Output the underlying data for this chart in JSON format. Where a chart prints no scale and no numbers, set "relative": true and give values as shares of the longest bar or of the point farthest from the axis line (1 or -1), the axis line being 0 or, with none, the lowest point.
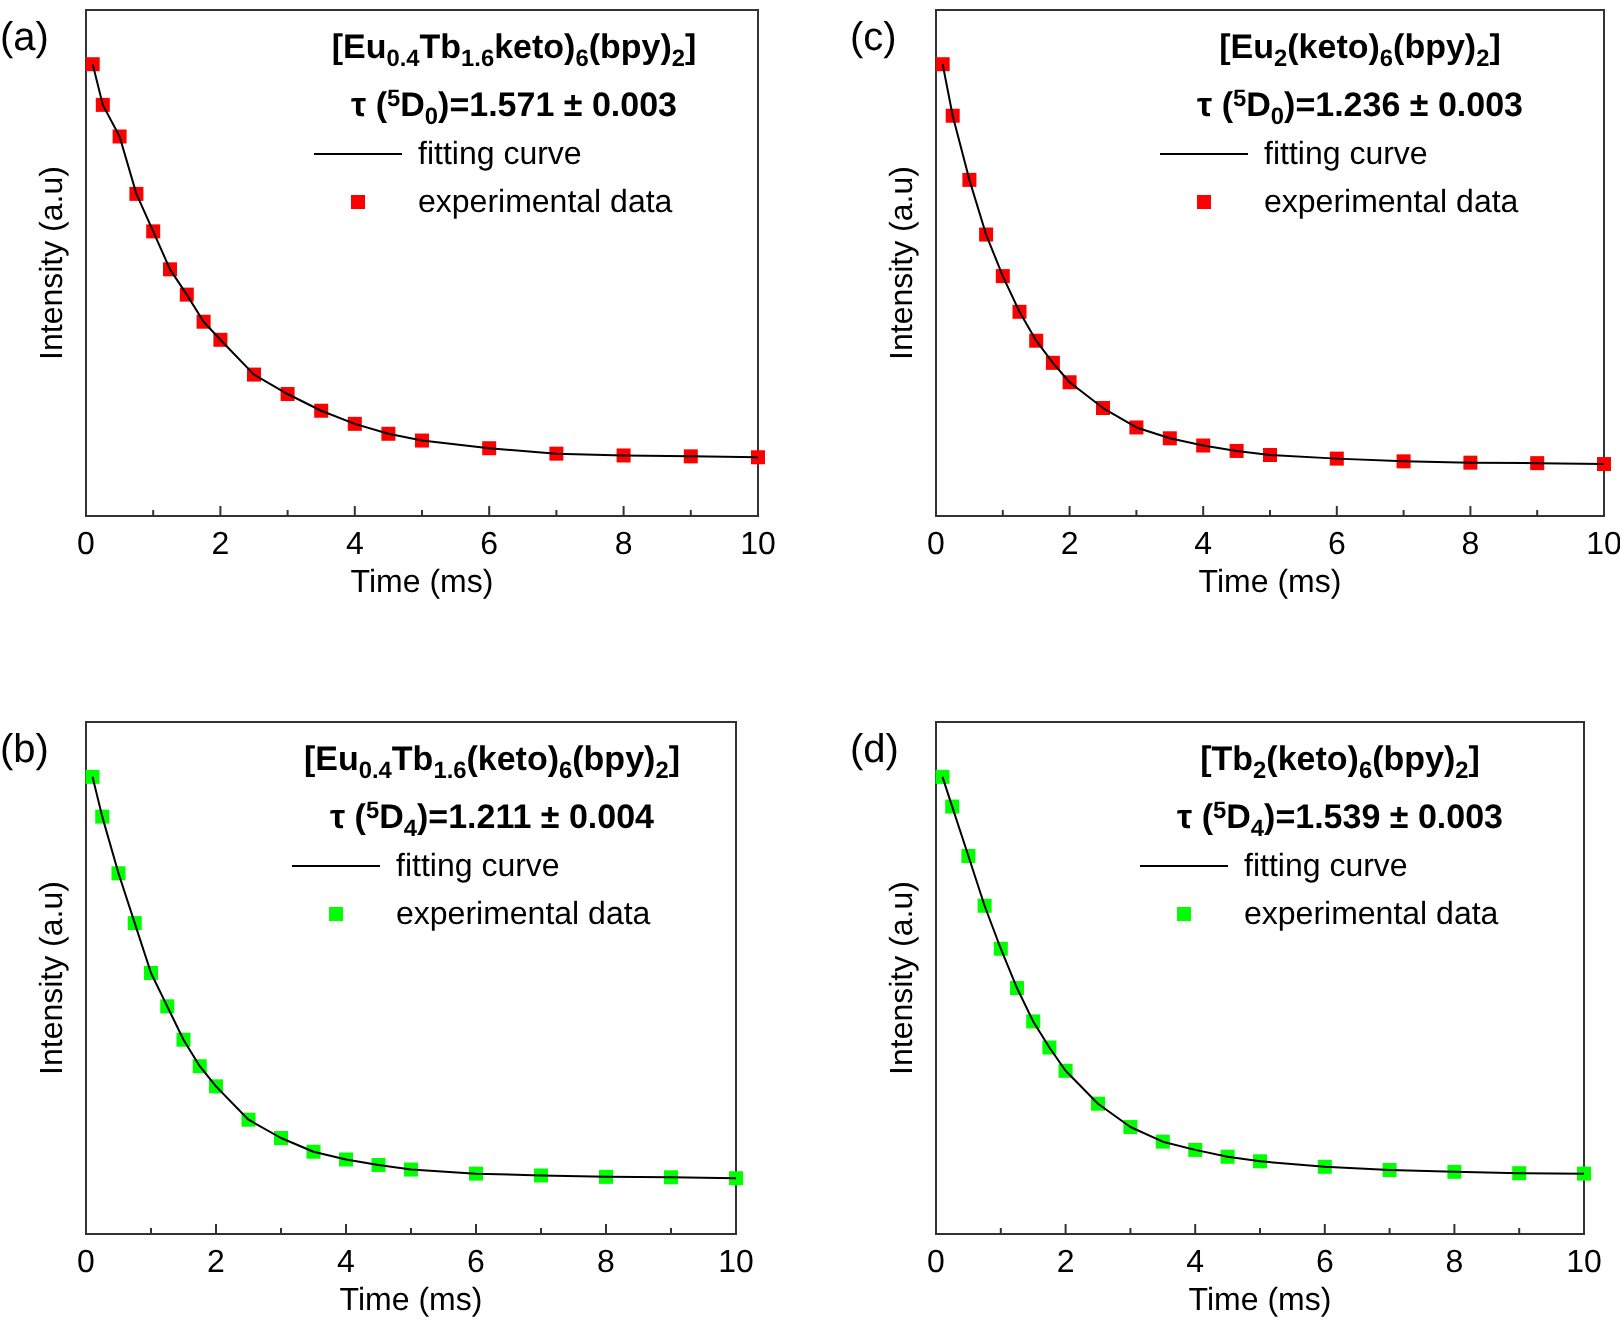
{
  "chart_data": [
    {
      "type": "line",
      "title": "[Eu$_{0.4}$Tb$_{1.6}$keto)$_{6}$(bpy)$_{2}$]",
      "subtitle": "τ ($^{5}$D$_{0}$)=1.571 ± 0.003",
      "annotations": [
        "(a)"
      ],
      "xlabel": "Time (ms)",
      "ylabel": "Intensity (a.u)",
      "relative": true,
      "legend": "top right",
      "tick_labels": "x",
      "xlim": [
        0,
        10
      ],
      "xticks": [
        0,
        {
          "value": 1,
          "label": null
        },
        2,
        {
          "value": 3,
          "label": null
        },
        4,
        {
          "value": 5,
          "label": null
        },
        6,
        {
          "value": 7,
          "label": null
        },
        8,
        {
          "value": 9,
          "label": null
        },
        10
      ],
      "x": [
        0.1,
        0.25,
        0.5,
        0.75,
        1,
        1.25,
        1.5,
        1.75,
        2,
        2.5,
        3,
        3.5,
        4,
        4.5,
        5,
        6,
        7,
        8,
        9,
        10
      ],
      "series": [
        {
          "name": "fitting curve",
          "type": "line",
          "color": "#000000",
          "marker": "none",
          "values": [
            1.0,
            0.91,
            0.84,
            0.713,
            0.63,
            0.546,
            0.49,
            0.43,
            0.39,
            0.313,
            0.27,
            0.233,
            0.204,
            0.182,
            0.167,
            0.15,
            0.138,
            0.134,
            0.132,
            0.13
          ]
        },
        {
          "name": "experimental data",
          "type": "scatter",
          "color": "#ff0000",
          "marker": "square",
          "values": [
            1.0,
            0.91,
            0.84,
            0.713,
            0.63,
            0.546,
            0.49,
            0.43,
            0.39,
            0.313,
            0.27,
            0.233,
            0.204,
            0.182,
            0.167,
            0.15,
            0.138,
            0.134,
            0.132,
            0.13
          ]
        }
      ]
    },
    {
      "type": "line",
      "title": "[Eu$_{2}$(keto)$_{6}$(bpy)$_{2}$]",
      "subtitle": "τ ($^{5}$D$_{0}$)=1.236 ± 0.003",
      "annotations": [
        "(c)"
      ],
      "xlabel": "Time (ms)",
      "ylabel": "Intensity (a.u)",
      "relative": true,
      "legend": "top right",
      "tick_labels": "x",
      "xlim": [
        0,
        10
      ],
      "xticks": [
        0,
        {
          "value": 1,
          "label": null
        },
        2,
        {
          "value": 3,
          "label": null
        },
        4,
        {
          "value": 5,
          "label": null
        },
        6,
        {
          "value": 7,
          "label": null
        },
        8,
        {
          "value": 9,
          "label": null
        },
        10
      ],
      "x": [
        0.1,
        0.25,
        0.5,
        0.75,
        1,
        1.25,
        1.5,
        1.75,
        2,
        2.5,
        3,
        3.5,
        4,
        4.5,
        5,
        6,
        7,
        8,
        9,
        10
      ],
      "series": [
        {
          "name": "fitting curve",
          "type": "line",
          "color": "#000000",
          "marker": "none",
          "values": [
            1.0,
            0.886,
            0.744,
            0.623,
            0.531,
            0.452,
            0.388,
            0.339,
            0.296,
            0.239,
            0.196,
            0.172,
            0.156,
            0.144,
            0.135,
            0.127,
            0.121,
            0.118,
            0.117,
            0.115
          ]
        },
        {
          "name": "experimental data",
          "type": "scatter",
          "color": "#ff0000",
          "marker": "square",
          "values": [
            1.0,
            0.886,
            0.744,
            0.623,
            0.531,
            0.452,
            0.388,
            0.339,
            0.296,
            0.239,
            0.196,
            0.172,
            0.156,
            0.144,
            0.135,
            0.127,
            0.121,
            0.118,
            0.117,
            0.115
          ]
        }
      ]
    },
    {
      "type": "line",
      "title": "[Eu$_{0.4}$Tb$_{1.6}$(keto)$_{6}$(bpy)$_{2}$]",
      "subtitle": "τ ($^{5}$D$_{4}$)=1.211 ± 0.004",
      "annotations": [
        "(b)"
      ],
      "xlabel": "Time (ms)",
      "ylabel": "Intensity (a.u)",
      "relative": true,
      "legend": "top right",
      "tick_labels": "x",
      "xlim": [
        0,
        10
      ],
      "xticks": [
        0,
        {
          "value": 1,
          "label": null
        },
        2,
        {
          "value": 3,
          "label": null
        },
        4,
        {
          "value": 5,
          "label": null
        },
        6,
        {
          "value": 7,
          "label": null
        },
        8,
        {
          "value": 9,
          "label": null
        },
        10
      ],
      "x": [
        0.1,
        0.25,
        0.5,
        0.75,
        1,
        1.25,
        1.5,
        1.75,
        2,
        2.5,
        3,
        3.5,
        4,
        4.5,
        5,
        6,
        7,
        8,
        9,
        10
      ],
      "series": [
        {
          "name": "fitting curve",
          "type": "line",
          "color": "#000000",
          "marker": "none",
          "values": [
            1.0,
            0.913,
            0.789,
            0.68,
            0.571,
            0.498,
            0.425,
            0.367,
            0.323,
            0.25,
            0.21,
            0.18,
            0.163,
            0.151,
            0.141,
            0.132,
            0.128,
            0.125,
            0.124,
            0.122
          ]
        },
        {
          "name": "experimental data",
          "type": "scatter",
          "color": "#00ff00",
          "marker": "square",
          "values": [
            1.0,
            0.913,
            0.789,
            0.68,
            0.571,
            0.498,
            0.425,
            0.367,
            0.323,
            0.25,
            0.21,
            0.18,
            0.163,
            0.151,
            0.141,
            0.132,
            0.128,
            0.125,
            0.124,
            0.122
          ]
        }
      ]
    },
    {
      "type": "line",
      "title": "[Tb$_{2}$(keto)$_{6}$(bpy)$_{2}$]",
      "subtitle": "τ ($^{5}$D$_{4}$)=1.539 ± 0.003",
      "annotations": [
        "(d)"
      ],
      "xlabel": "Time (ms)",
      "ylabel": "Intensity (a.u)",
      "relative": true,
      "legend": "top right",
      "tick_labels": "x",
      "xlim": [
        0,
        10
      ],
      "xticks": [
        0,
        {
          "value": 1,
          "label": null
        },
        2,
        {
          "value": 3,
          "label": null
        },
        4,
        {
          "value": 5,
          "label": null
        },
        6,
        {
          "value": 7,
          "label": null
        },
        8,
        {
          "value": 9,
          "label": null
        },
        10
      ],
      "x": [
        0.1,
        0.25,
        0.5,
        0.75,
        1,
        1.25,
        1.5,
        1.75,
        2,
        2.5,
        3,
        3.5,
        4,
        4.5,
        5,
        6,
        7,
        8,
        9,
        10
      ],
      "series": [
        {
          "name": "fitting curve",
          "type": "line",
          "color": "#000000",
          "marker": "none",
          "values": [
            1.0,
            0.935,
            0.827,
            0.718,
            0.624,
            0.538,
            0.465,
            0.408,
            0.357,
            0.285,
            0.234,
            0.202,
            0.184,
            0.169,
            0.159,
            0.147,
            0.14,
            0.136,
            0.133,
            0.132
          ]
        },
        {
          "name": "experimental data",
          "type": "scatter",
          "color": "#00ff00",
          "marker": "square",
          "values": [
            1.0,
            0.935,
            0.827,
            0.718,
            0.624,
            0.538,
            0.465,
            0.408,
            0.357,
            0.285,
            0.234,
            0.202,
            0.184,
            0.169,
            0.159,
            0.147,
            0.14,
            0.136,
            0.133,
            0.132
          ]
        }
      ]
    }
  ]
}
